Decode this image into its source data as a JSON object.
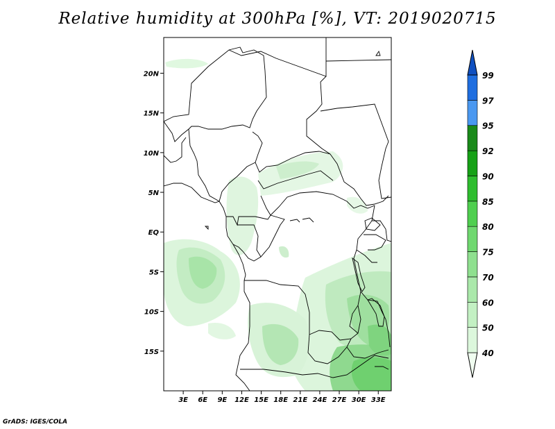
{
  "title": "Relative humidity at 300hPa [%], VT: 2019020715",
  "credit": "GrADS: IGES/COLA",
  "map": {
    "lat_ticks": [
      "20N",
      "15N",
      "10N",
      "5N",
      "EQ",
      "5S",
      "10S",
      "15S"
    ],
    "lon_ticks": [
      "3E",
      "6E",
      "9E",
      "12E",
      "15E",
      "18E",
      "21E",
      "24E",
      "27E",
      "30E",
      "33E"
    ],
    "lat_range": [
      -20,
      24.5
    ],
    "lon_range": [
      0,
      35
    ]
  },
  "colorbar": {
    "levels": [
      "40",
      "50",
      "60",
      "70",
      "75",
      "80",
      "85",
      "90",
      "92",
      "95",
      "97",
      "99"
    ],
    "colors": [
      "#f0fdf0",
      "#dcf7dc",
      "#c3f0c3",
      "#aae8aa",
      "#8fe08f",
      "#6fd86f",
      "#4fcf4f",
      "#2ebd2e",
      "#16a116",
      "#1a8a1a",
      "#4a98f0",
      "#1f6ee0",
      "#1050c0"
    ]
  }
}
